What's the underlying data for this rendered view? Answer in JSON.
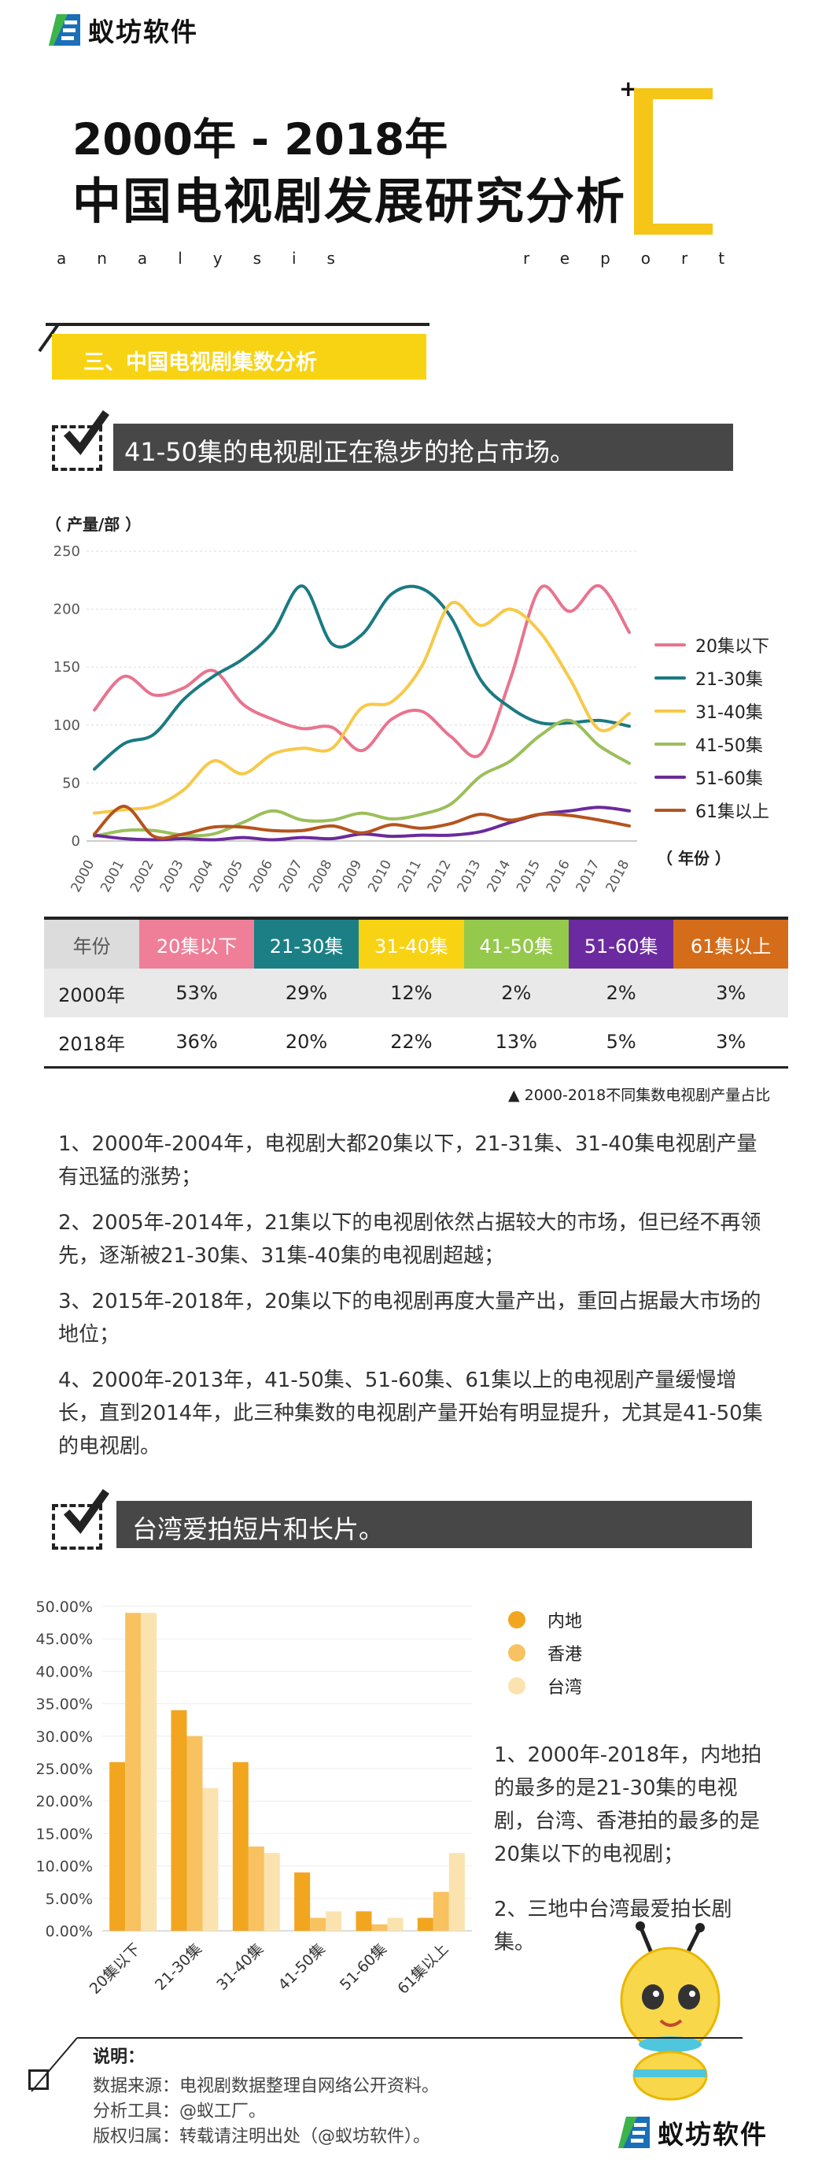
{
  "brand": {
    "name": "蚁坊软件"
  },
  "header": {
    "title_line1": "2000年 - 2018年",
    "title_line2": "中国电视剧发展研究分析",
    "sub_left": "analysis",
    "sub_right": "report"
  },
  "section": {
    "title": "三、中国电视剧集数分析"
  },
  "block1": {
    "heading": "41-50集的电视剧正在稳步的抢占市场。"
  },
  "chart1": {
    "ylabel": "（ 产量/部 ）",
    "xlabel": "（ 年份 ）"
  },
  "chart_data": [
    {
      "type": "line",
      "title": "",
      "ylabel": "（ 产量/部 ）",
      "xlabel": "（ 年份 ）",
      "ylim": [
        0,
        250
      ],
      "yticks": [
        0,
        50,
        100,
        150,
        200,
        250
      ],
      "x": [
        "2000",
        "2001",
        "2002",
        "2003",
        "2004",
        "2005",
        "2006",
        "2007",
        "2008",
        "2009",
        "2010",
        "2011",
        "2012",
        "2013",
        "2014",
        "2015",
        "2016",
        "2017",
        "2018"
      ],
      "series": [
        {
          "name": "20集以下",
          "color": "#e8748f",
          "values": [
            113,
            142,
            126,
            132,
            147,
            118,
            105,
            97,
            98,
            78,
            105,
            112,
            90,
            75,
            140,
            218,
            198,
            220,
            180
          ]
        },
        {
          "name": "21-30集",
          "color": "#1b7a82",
          "values": [
            62,
            84,
            92,
            122,
            142,
            157,
            180,
            220,
            170,
            178,
            213,
            218,
            193,
            139,
            115,
            102,
            102,
            104,
            99
          ]
        },
        {
          "name": "31-40集",
          "color": "#f7c948",
          "values": [
            24,
            27,
            30,
            44,
            69,
            58,
            75,
            80,
            80,
            115,
            120,
            150,
            205,
            186,
            200,
            180,
            140,
            96,
            110
          ]
        },
        {
          "name": "41-50集",
          "color": "#9bbf5a",
          "values": [
            4,
            9,
            9,
            5,
            6,
            16,
            26,
            18,
            18,
            24,
            19,
            23,
            32,
            56,
            69,
            91,
            104,
            82,
            67
          ]
        },
        {
          "name": "51-60集",
          "color": "#6a2a9b",
          "values": [
            5,
            2,
            1,
            2,
            1,
            3,
            1,
            3,
            2,
            6,
            4,
            5,
            5,
            8,
            16,
            23,
            26,
            29,
            26
          ]
        },
        {
          "name": "61集以上",
          "color": "#b5541e",
          "values": [
            6,
            30,
            4,
            6,
            12,
            12,
            9,
            9,
            13,
            7,
            14,
            11,
            15,
            23,
            18,
            23,
            22,
            18,
            13
          ]
        }
      ]
    },
    {
      "type": "table",
      "title": "2000-2018不同集数电视剧产量占比",
      "columns": [
        "年份",
        "20集以下",
        "21-30集",
        "31-40集",
        "41-50集",
        "51-60集",
        "61集以上"
      ],
      "column_colors": [
        "#dcdcdc",
        "#ef7f98",
        "#1b7f85",
        "#f8d313",
        "#94c94c",
        "#6b2aa0",
        "#d56c1a"
      ],
      "rows": [
        [
          "2000年",
          "53%",
          "29%",
          "12%",
          "2%",
          "2%",
          "3%"
        ],
        [
          "2018年",
          "36%",
          "20%",
          "22%",
          "13%",
          "5%",
          "3%"
        ]
      ]
    },
    {
      "type": "bar",
      "title": "",
      "ylim": [
        0,
        0.5
      ],
      "yticks": [
        "0.00%",
        "5.00%",
        "10.00%",
        "15.00%",
        "20.00%",
        "25.00%",
        "30.00%",
        "35.00%",
        "40.00%",
        "45.00%",
        "50.00%"
      ],
      "categories": [
        "20集以下",
        "21-30集",
        "31-40集",
        "41-50集",
        "51-60集",
        "61集以上"
      ],
      "series": [
        {
          "name": "内地",
          "color": "#f2a51f",
          "values": [
            0.26,
            0.34,
            0.26,
            0.09,
            0.03,
            0.02
          ]
        },
        {
          "name": "香港",
          "color": "#f8c260",
          "values": [
            0.49,
            0.3,
            0.13,
            0.02,
            0.01,
            0.06
          ]
        },
        {
          "name": "台湾",
          "color": "#fbe3b0",
          "values": [
            0.49,
            0.22,
            0.12,
            0.03,
            0.02,
            0.12
          ]
        }
      ]
    }
  ],
  "table_caption": "▲ 2000-2018不同集数电视剧产量占比",
  "paragraphs": [
    "1、2000年-2004年，电视剧大都20集以下，21-31集、31-40集电视剧产量有迅猛的涨势；",
    "2、2005年-2014年，21集以下的电视剧依然占据较大的市场，但已经不再领先，逐渐被21-30集、31集-40集的电视剧超越；",
    "3、2015年-2018年，20集以下的电视剧再度大量产出，重回占据最大市场的地位；",
    "4、2000年-2013年，41-50集、51-60集、61集以上的电视剧产量缓慢增长，直到2014年，此三种集数的电视剧产量开始有明显提升，尤其是41-50集的电视剧。"
  ],
  "block2": {
    "heading": "台湾爱拍短片和长片。",
    "side_text1": "1、2000年-2018年，内地拍的最多的是21-30集的电视剧，台湾、香港拍的最多的是20集以下的电视剧；",
    "side_text2": "2、三地中台湾最爱拍长剧集。"
  },
  "notes": {
    "heading": "说明：",
    "lines": [
      "数据来源：电视剧数据整理自网络公开资料。",
      "分析工具：@蚁工厂。",
      "版权归属：转载请注明出处（@蚁坊软件）。"
    ]
  }
}
